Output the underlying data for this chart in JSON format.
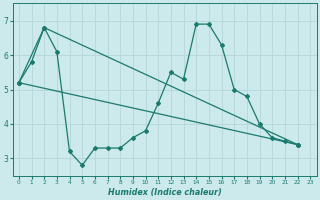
{
  "xlabel": "Humidex (Indice chaleur)",
  "xlim": [
    -0.5,
    23.5
  ],
  "ylim": [
    2.5,
    7.5
  ],
  "yticks": [
    3,
    4,
    5,
    6,
    7
  ],
  "xticks": [
    0,
    1,
    2,
    3,
    4,
    5,
    6,
    7,
    8,
    9,
    10,
    11,
    12,
    13,
    14,
    15,
    16,
    17,
    18,
    19,
    20,
    21,
    22,
    23
  ],
  "bg_color": "#cce9ec",
  "line_color": "#1a7a6e",
  "grid_color": "#b8d8db",
  "lines": [
    {
      "x": [
        0,
        1,
        2,
        3,
        4,
        5,
        6,
        7,
        8,
        9,
        10,
        11,
        12,
        13,
        14,
        15,
        16,
        17,
        18,
        19,
        20,
        21,
        22
      ],
      "y": [
        5.2,
        5.8,
        6.8,
        6.1,
        3.2,
        2.8,
        3.3,
        3.3,
        3.3,
        3.6,
        3.8,
        4.6,
        5.5,
        5.3,
        6.9,
        6.9,
        6.3,
        5.0,
        4.8,
        4.0,
        3.6,
        3.5,
        3.4
      ]
    },
    {
      "x": [
        0,
        2,
        22
      ],
      "y": [
        5.2,
        6.8,
        3.4
      ]
    },
    {
      "x": [
        0,
        22
      ],
      "y": [
        5.2,
        3.4
      ]
    }
  ]
}
